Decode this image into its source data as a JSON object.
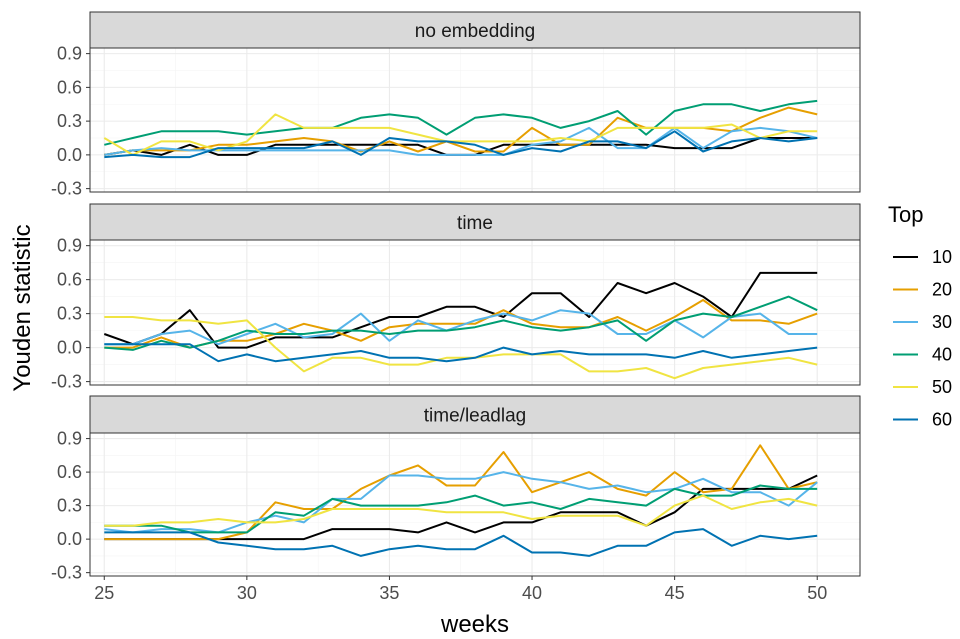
{
  "chart_data": {
    "type": "line",
    "xlabel": "weeks",
    "ylabel": "Youden statistic",
    "xlim": [
      24.5,
      51.5
    ],
    "ylim": [
      -0.33,
      0.95
    ],
    "x_ticks": [
      25,
      30,
      35,
      40,
      45,
      50
    ],
    "x_tick_labels": [
      "25",
      "30",
      "35",
      "40",
      "45",
      "50"
    ],
    "y_ticks": [
      -0.3,
      0.0,
      0.3,
      0.6,
      0.9
    ],
    "y_tick_labels": [
      "-0.3",
      "0.0",
      "0.3",
      "0.6",
      "0.9"
    ],
    "grid": true,
    "legend_title": "Top",
    "legend_position": "right",
    "colors": {
      "10": "#000000",
      "20": "#E69F00",
      "30": "#56B4E9",
      "40": "#009E73",
      "50": "#F0E442",
      "60": "#0072B2"
    },
    "x": [
      25,
      26,
      27,
      28,
      29,
      30,
      31,
      32,
      33,
      34,
      35,
      36,
      37,
      38,
      39,
      40,
      41,
      42,
      43,
      44,
      45,
      46,
      47,
      48,
      49,
      50
    ],
    "panels": [
      {
        "label": "no embedding",
        "series": [
          {
            "name": "10",
            "values": [
              0.0,
              0.04,
              0.0,
              0.09,
              0.0,
              0.0,
              0.09,
              0.09,
              0.09,
              0.09,
              0.09,
              0.09,
              0.0,
              0.0,
              0.09,
              0.09,
              0.09,
              0.09,
              0.09,
              0.09,
              0.06,
              0.06,
              0.06,
              0.15,
              0.15,
              0.15
            ]
          },
          {
            "name": "20",
            "values": [
              0.0,
              0.04,
              0.04,
              0.04,
              0.09,
              0.09,
              0.12,
              0.15,
              0.12,
              0.03,
              0.12,
              0.03,
              0.12,
              0.03,
              0.03,
              0.24,
              0.09,
              0.09,
              0.33,
              0.24,
              0.24,
              0.24,
              0.21,
              0.33,
              0.42,
              0.36
            ]
          },
          {
            "name": "30",
            "values": [
              0.0,
              0.04,
              0.06,
              0.04,
              0.04,
              0.04,
              0.04,
              0.04,
              0.04,
              0.04,
              0.04,
              0.0,
              0.0,
              0.0,
              0.0,
              0.09,
              0.12,
              0.24,
              0.06,
              0.06,
              0.24,
              0.06,
              0.21,
              0.24,
              0.21,
              0.15
            ]
          },
          {
            "name": "40",
            "values": [
              0.09,
              0.15,
              0.21,
              0.21,
              0.21,
              0.18,
              0.21,
              0.24,
              0.24,
              0.33,
              0.36,
              0.33,
              0.18,
              0.33,
              0.36,
              0.33,
              0.24,
              0.3,
              0.39,
              0.18,
              0.39,
              0.45,
              0.45,
              0.39,
              0.45,
              0.48
            ]
          },
          {
            "name": "50",
            "values": [
              0.15,
              0.0,
              0.12,
              0.12,
              0.04,
              0.12,
              0.36,
              0.24,
              0.24,
              0.24,
              0.24,
              0.18,
              0.12,
              0.12,
              0.12,
              0.12,
              0.15,
              0.12,
              0.24,
              0.24,
              0.24,
              0.24,
              0.27,
              0.15,
              0.21,
              0.21
            ]
          },
          {
            "name": "60",
            "values": [
              -0.02,
              0.0,
              -0.02,
              -0.02,
              0.06,
              0.06,
              0.06,
              0.06,
              0.12,
              0.0,
              0.15,
              0.12,
              0.12,
              0.09,
              0.0,
              0.06,
              0.03,
              0.12,
              0.12,
              0.06,
              0.21,
              0.03,
              0.12,
              0.15,
              0.12,
              0.15
            ]
          }
        ]
      },
      {
        "label": "time",
        "series": [
          {
            "name": "10",
            "values": [
              0.12,
              0.03,
              0.12,
              0.33,
              0.0,
              0.0,
              0.09,
              0.09,
              0.09,
              0.18,
              0.27,
              0.27,
              0.36,
              0.36,
              0.27,
              0.48,
              0.48,
              0.27,
              0.57,
              0.48,
              0.57,
              0.45,
              0.27,
              0.66,
              0.66,
              0.66
            ]
          },
          {
            "name": "20",
            "values": [
              0.0,
              0.0,
              0.09,
              0.0,
              0.06,
              0.06,
              0.12,
              0.21,
              0.15,
              0.06,
              0.18,
              0.21,
              0.21,
              0.21,
              0.33,
              0.21,
              0.18,
              0.18,
              0.27,
              0.15,
              0.27,
              0.42,
              0.24,
              0.24,
              0.21,
              0.3
            ]
          },
          {
            "name": "30",
            "values": [
              0.03,
              0.03,
              0.12,
              0.15,
              0.03,
              0.12,
              0.21,
              0.09,
              0.12,
              0.3,
              0.06,
              0.24,
              0.15,
              0.24,
              0.3,
              0.24,
              0.33,
              0.3,
              0.12,
              0.12,
              0.24,
              0.09,
              0.27,
              0.3,
              0.12,
              0.12
            ]
          },
          {
            "name": "40",
            "values": [
              0.0,
              -0.02,
              0.06,
              0.0,
              0.06,
              0.15,
              0.12,
              0.12,
              0.15,
              0.15,
              0.12,
              0.15,
              0.15,
              0.18,
              0.24,
              0.18,
              0.15,
              0.18,
              0.24,
              0.06,
              0.24,
              0.3,
              0.27,
              0.36,
              0.45,
              0.33
            ]
          },
          {
            "name": "50",
            "values": [
              0.27,
              0.27,
              0.24,
              0.24,
              0.21,
              0.24,
              0.0,
              -0.21,
              -0.09,
              -0.09,
              -0.15,
              -0.15,
              -0.09,
              -0.09,
              -0.06,
              -0.06,
              -0.06,
              -0.21,
              -0.21,
              -0.18,
              -0.27,
              -0.18,
              -0.15,
              -0.12,
              -0.09,
              -0.15
            ]
          },
          {
            "name": "60",
            "values": [
              0.03,
              0.03,
              0.03,
              0.03,
              -0.12,
              -0.06,
              -0.12,
              -0.09,
              -0.06,
              -0.03,
              -0.09,
              -0.09,
              -0.12,
              -0.09,
              0.0,
              -0.06,
              -0.03,
              -0.06,
              -0.06,
              -0.06,
              -0.09,
              -0.03,
              -0.09,
              -0.06,
              -0.03,
              0.0
            ]
          }
        ]
      },
      {
        "label": "time/leadlag",
        "series": [
          {
            "name": "10",
            "values": [
              0.0,
              0.0,
              0.0,
              0.0,
              0.0,
              0.0,
              0.0,
              0.0,
              0.09,
              0.09,
              0.09,
              0.06,
              0.15,
              0.06,
              0.15,
              0.15,
              0.24,
              0.24,
              0.24,
              0.12,
              0.24,
              0.45,
              0.45,
              0.45,
              0.45,
              0.57
            ]
          },
          {
            "name": "20",
            "values": [
              0.0,
              0.0,
              0.0,
              0.0,
              0.0,
              0.06,
              0.33,
              0.27,
              0.27,
              0.45,
              0.57,
              0.66,
              0.48,
              0.48,
              0.78,
              0.42,
              0.51,
              0.6,
              0.45,
              0.39,
              0.6,
              0.42,
              0.45,
              0.84,
              0.45,
              0.51
            ]
          },
          {
            "name": "30",
            "values": [
              0.09,
              0.06,
              0.09,
              0.09,
              0.06,
              0.15,
              0.21,
              0.15,
              0.36,
              0.36,
              0.57,
              0.57,
              0.54,
              0.54,
              0.6,
              0.54,
              0.51,
              0.45,
              0.48,
              0.42,
              0.45,
              0.54,
              0.42,
              0.42,
              0.3,
              0.51
            ]
          },
          {
            "name": "40",
            "values": [
              0.12,
              0.12,
              0.12,
              0.06,
              0.06,
              0.06,
              0.24,
              0.21,
              0.36,
              0.3,
              0.3,
              0.3,
              0.33,
              0.39,
              0.3,
              0.33,
              0.27,
              0.36,
              0.33,
              0.3,
              0.45,
              0.39,
              0.39,
              0.48,
              0.45,
              0.45
            ]
          },
          {
            "name": "50",
            "values": [
              0.12,
              0.12,
              0.15,
              0.15,
              0.18,
              0.15,
              0.15,
              0.18,
              0.27,
              0.27,
              0.27,
              0.27,
              0.24,
              0.24,
              0.24,
              0.18,
              0.21,
              0.21,
              0.21,
              0.12,
              0.3,
              0.39,
              0.27,
              0.33,
              0.36,
              0.3
            ]
          },
          {
            "name": "60",
            "values": [
              0.06,
              0.06,
              0.06,
              0.06,
              -0.03,
              -0.06,
              -0.09,
              -0.09,
              -0.06,
              -0.15,
              -0.09,
              -0.06,
              -0.09,
              -0.09,
              0.03,
              -0.12,
              -0.12,
              -0.15,
              -0.06,
              -0.06,
              0.06,
              0.09,
              -0.06,
              0.03,
              0.0,
              0.03
            ]
          }
        ]
      }
    ]
  }
}
